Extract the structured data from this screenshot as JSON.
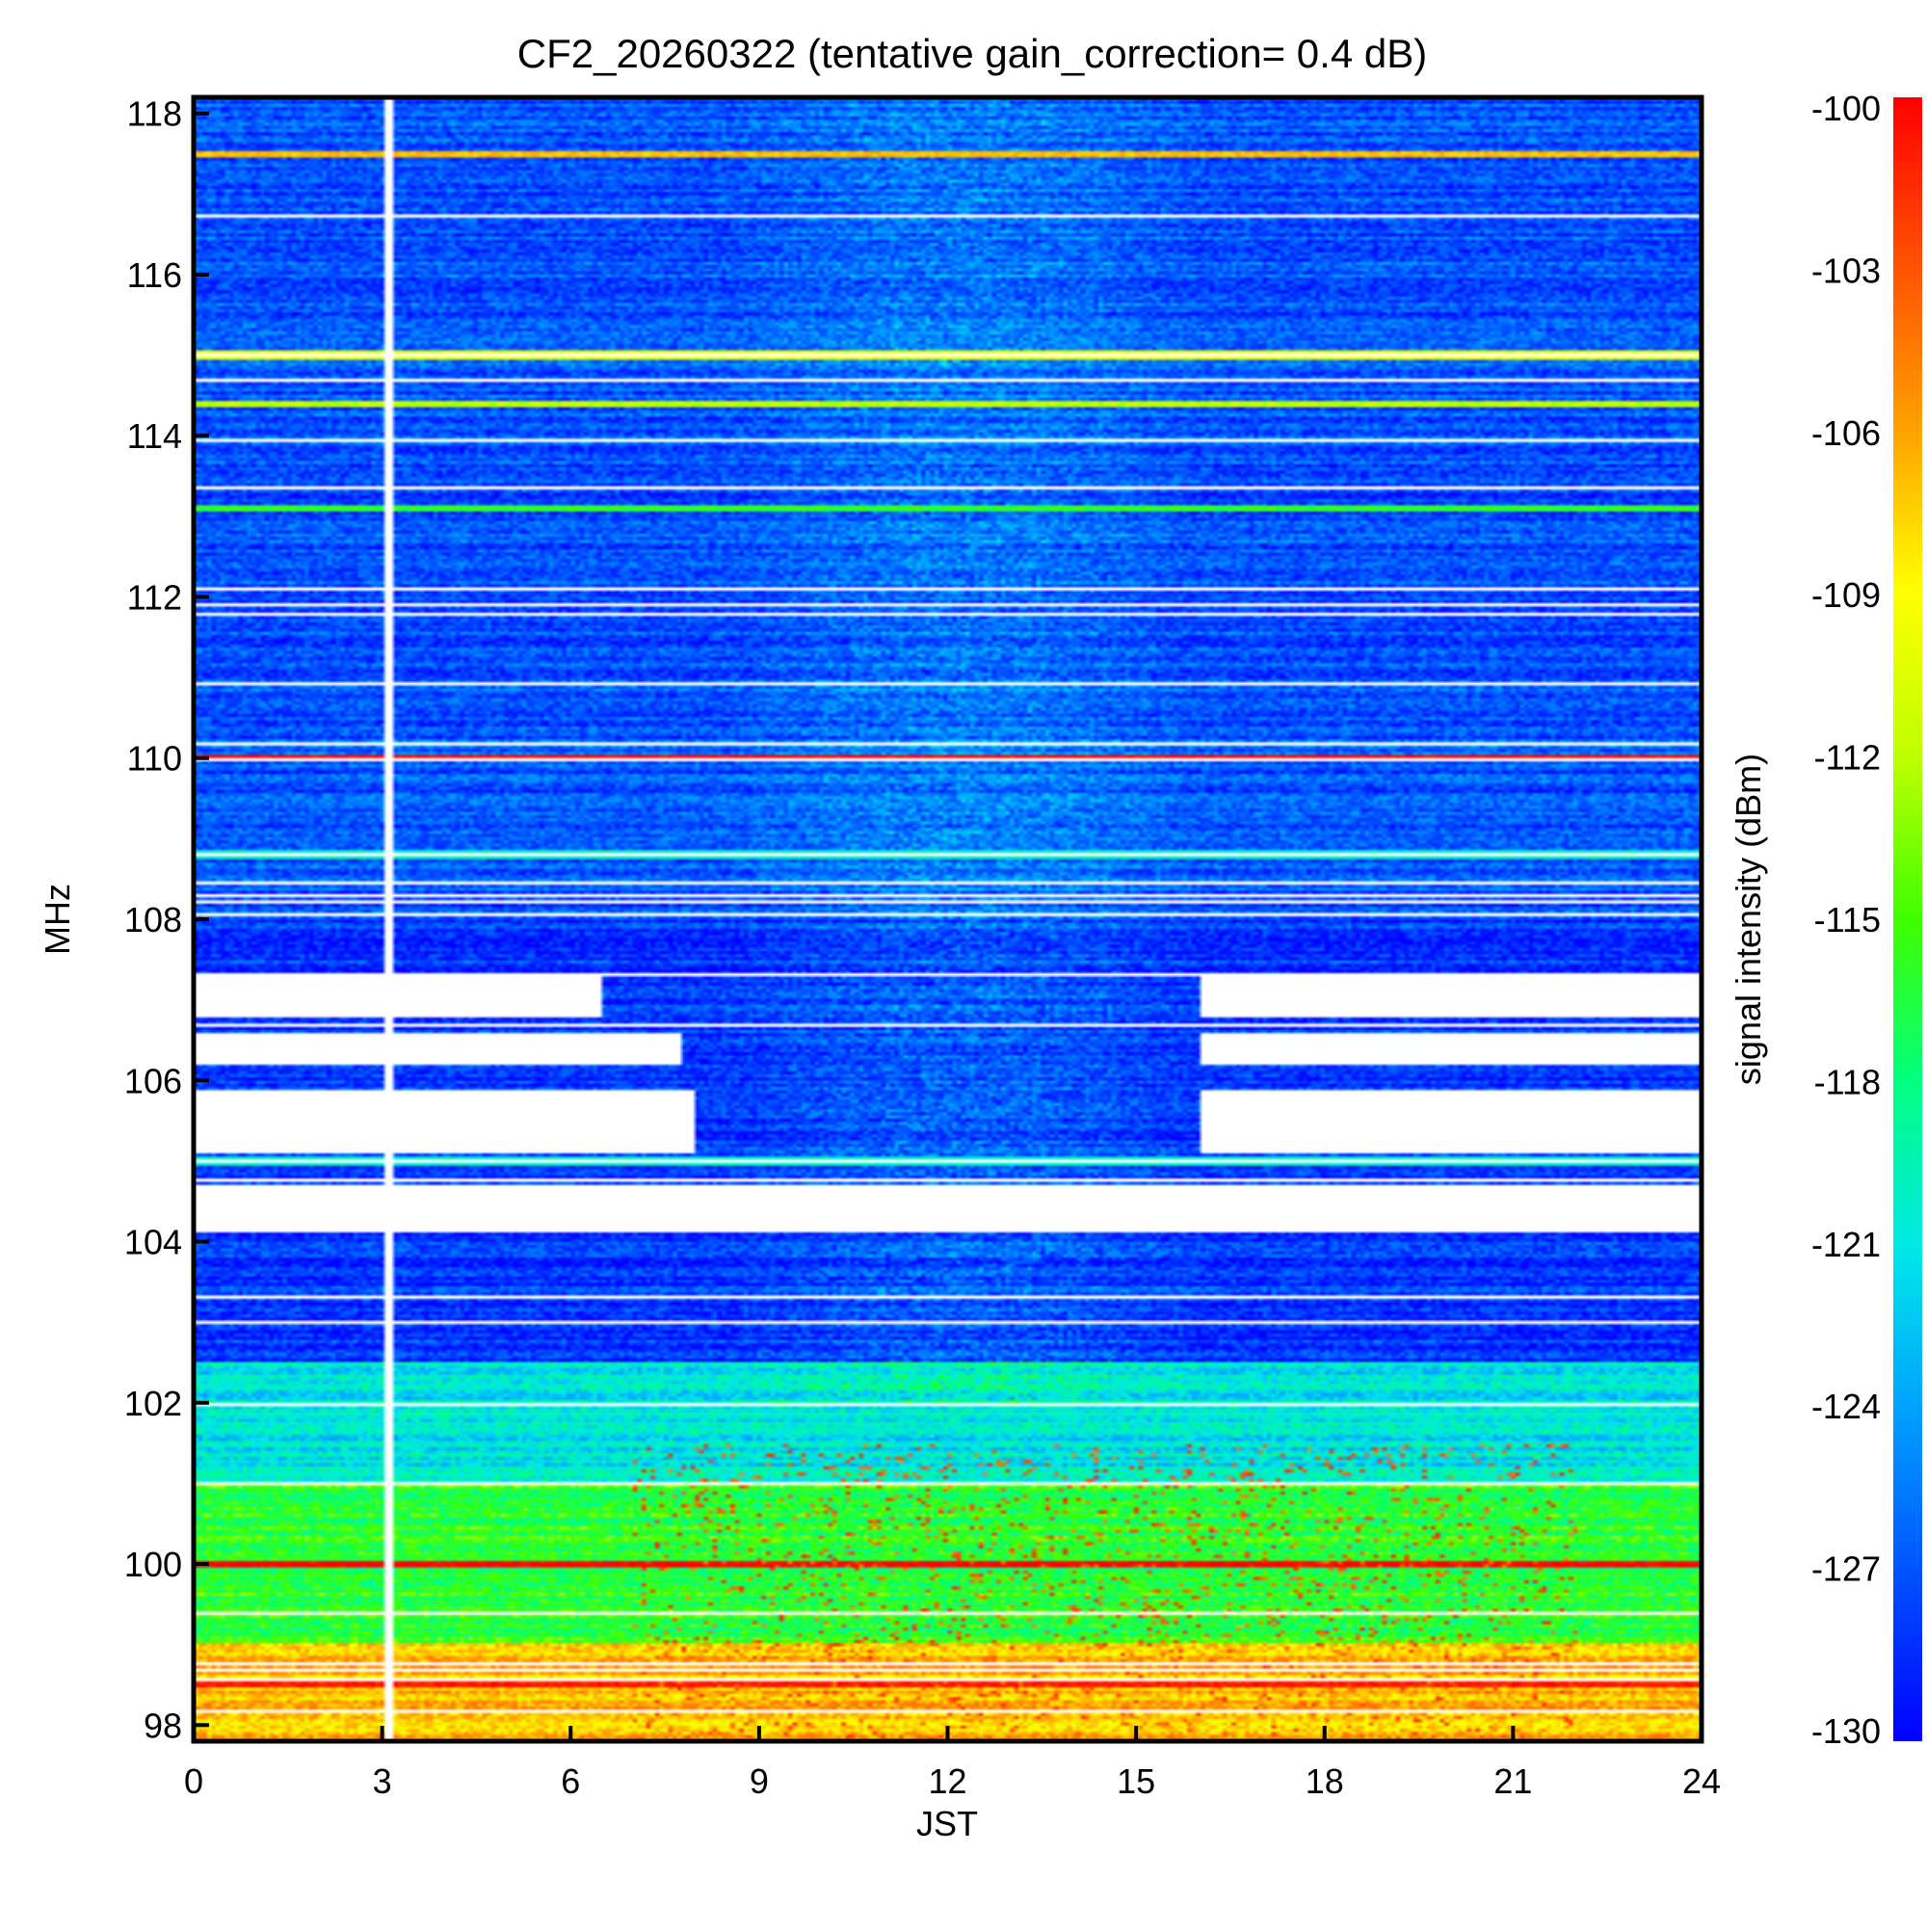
{
  "chart_data": {
    "type": "heatmap",
    "title": "CF2_20260322 (tentative gain_correction=  0.4 dB)",
    "xlabel": "JST",
    "ylabel": "MHz",
    "colorbar_label": "signal intensity (dBm)",
    "xlim": [
      0,
      24
    ],
    "ylim": [
      97.8,
      118.2
    ],
    "clim": [
      -130,
      -100
    ],
    "x_ticks": [
      "0",
      "3",
      "6",
      "9",
      "12",
      "15",
      "18",
      "21",
      "24"
    ],
    "y_ticks": [
      "98",
      "100",
      "102",
      "104",
      "106",
      "108",
      "110",
      "112",
      "114",
      "116",
      "118"
    ],
    "colorbar_ticks": [
      "-100",
      "-103",
      "-106",
      "-109",
      "-112",
      "-115",
      "-118",
      "-121",
      "-124",
      "-127",
      "-130"
    ],
    "colormap": [
      "#0000ff",
      "#0050ff",
      "#00a0ff",
      "#00e8e8",
      "#00ff80",
      "#40ff00",
      "#c0ff00",
      "#ffff00",
      "#ffa000",
      "#ff5000",
      "#ff0000"
    ],
    "data_gap_time_JST": 3.0,
    "background_levels_dBm": [
      {
        "band_MHz": [
          97.8,
          99.0
        ],
        "level": -107
      },
      {
        "band_MHz": [
          99.0,
          101.0
        ],
        "level": -116
      },
      {
        "band_MHz": [
          101.0,
          102.5
        ],
        "level": -121
      },
      {
        "band_MHz": [
          102.5,
          108.0
        ],
        "level": -128
      },
      {
        "band_MHz": [
          108.0,
          118.2
        ],
        "level": -127
      }
    ],
    "persistent_signals": [
      {
        "freq_MHz": 117.5,
        "level_dBm": -107
      },
      {
        "freq_MHz": 115.0,
        "level_dBm": -110
      },
      {
        "freq_MHz": 114.4,
        "level_dBm": -112
      },
      {
        "freq_MHz": 113.1,
        "level_dBm": -116
      },
      {
        "freq_MHz": 110.0,
        "level_dBm": -100
      },
      {
        "freq_MHz": 108.8,
        "level_dBm": -120
      },
      {
        "freq_MHz": 105.0,
        "level_dBm": -120
      },
      {
        "freq_MHz": 100.0,
        "level_dBm": -100
      },
      {
        "freq_MHz": 98.5,
        "level_dBm": -101
      }
    ],
    "gap_regions": [
      {
        "freq_MHz": [
          106.8,
          107.3
        ],
        "time_JST": [
          0,
          6.5
        ]
      },
      {
        "freq_MHz": [
          106.8,
          107.3
        ],
        "time_JST": [
          16.0,
          24
        ]
      },
      {
        "freq_MHz": [
          106.2,
          106.6
        ],
        "time_JST": [
          0,
          7.8
        ]
      },
      {
        "freq_MHz": [
          106.2,
          106.6
        ],
        "time_JST": [
          16.0,
          24
        ]
      },
      {
        "freq_MHz": [
          105.1,
          105.9
        ],
        "time_JST": [
          0,
          8.0
        ]
      },
      {
        "freq_MHz": [
          105.1,
          105.9
        ],
        "time_JST": [
          16.0,
          24
        ]
      },
      {
        "freq_MHz": [
          104.1,
          104.7
        ],
        "time_JST": [
          0,
          24
        ]
      }
    ],
    "daytime_enhancement_JST": [
      8.5,
      16.0
    ]
  }
}
